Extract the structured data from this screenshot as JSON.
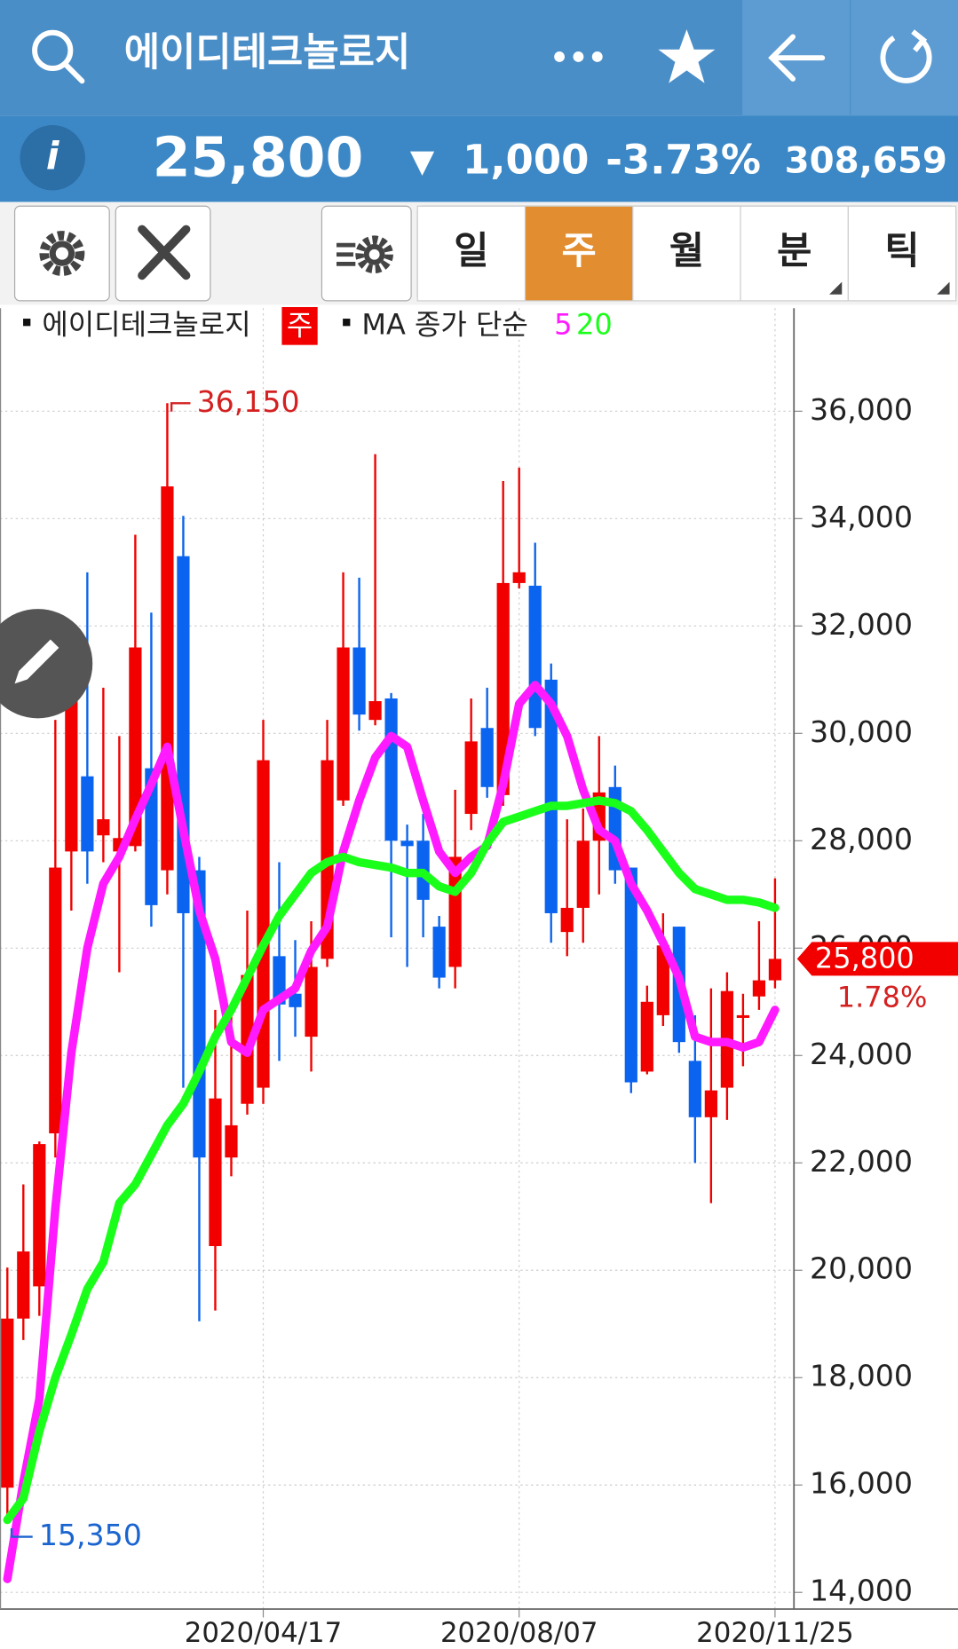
{
  "header": {
    "title": "에이디테크놀로지"
  },
  "quote": {
    "price": "25,800",
    "direction": "▼",
    "change": "1,000",
    "change_pct": "-3.73%",
    "volume": "308,659"
  },
  "toolbar": {
    "tabs": [
      "일",
      "주",
      "월",
      "분",
      "틱"
    ],
    "active_tab": "주"
  },
  "chart_data": {
    "type": "candlestick",
    "title": "에이디테크놀로지",
    "period_badge": "주",
    "ma_label": "MA 종가 단순",
    "categories": [
      null,
      null,
      null,
      null,
      null,
      null,
      null,
      null,
      null,
      null,
      null,
      null,
      null,
      null,
      null,
      null,
      "2020/04/17",
      null,
      null,
      null,
      null,
      null,
      null,
      null,
      null,
      null,
      null,
      null,
      null,
      null,
      null,
      null,
      "2020/08/07",
      null,
      null,
      null,
      null,
      null,
      null,
      null,
      null,
      null,
      null,
      null,
      null,
      null,
      null,
      null,
      "2020/11/25"
    ],
    "open": [
      15950,
      19100,
      19700,
      22550,
      27800,
      29200,
      28100,
      27800,
      27900,
      29350,
      27450,
      33300,
      27450,
      20450,
      22100,
      23100,
      23400,
      25850,
      25150,
      24350,
      25800,
      28750,
      31600,
      30250,
      30650,
      28000,
      28000,
      26400,
      25650,
      28500,
      30100,
      28850,
      32800,
      32750,
      31000,
      26300,
      26750,
      28000,
      29000,
      27500,
      23700,
      24750,
      26400,
      23900,
      22850,
      23400,
      24700,
      25100,
      25400
    ],
    "high": [
      20050,
      21600,
      22400,
      30250,
      31800,
      33000,
      30850,
      29950,
      33700,
      32250,
      36150,
      34050,
      27700,
      24850,
      24850,
      26700,
      30250,
      27600,
      26150,
      26500,
      30250,
      33000,
      32900,
      35200,
      30750,
      28300,
      28500,
      26600,
      28950,
      30650,
      30850,
      34700,
      34950,
      33550,
      31300,
      28400,
      28600,
      29950,
      29400,
      27500,
      25300,
      26650,
      26400,
      24750,
      25250,
      25550,
      25150,
      26500,
      27300
    ],
    "low": [
      15350,
      18700,
      19150,
      22100,
      26700,
      27200,
      27600,
      25550,
      27800,
      26400,
      27000,
      23400,
      19050,
      19250,
      21750,
      22900,
      23100,
      23900,
      24350,
      23700,
      25650,
      28650,
      30050,
      30150,
      26200,
      25650,
      26200,
      25250,
      25250,
      28200,
      28800,
      28650,
      32700,
      29950,
      26100,
      25850,
      26100,
      27000,
      27200,
      23300,
      23650,
      24550,
      24050,
      22000,
      21250,
      22800,
      23800,
      24850,
      25250
    ],
    "close": [
      19100,
      20350,
      22350,
      27500,
      31200,
      27800,
      28400,
      28050,
      31600,
      26800,
      34600,
      26650,
      22100,
      23200,
      22700,
      25500,
      29500,
      24950,
      24900,
      25650,
      29500,
      31600,
      30350,
      30600,
      28000,
      27900,
      26900,
      25450,
      27700,
      29850,
      29000,
      32800,
      33000,
      30100,
      26650,
      26750,
      28000,
      28900,
      27450,
      23500,
      25000,
      26050,
      24250,
      22850,
      23350,
      25200,
      24750,
      25400,
      25800
    ],
    "up_color": "#f20000",
    "down_color": "#0a64f0",
    "series": [
      {
        "name": "5",
        "color": "#ff1aff",
        "values": [
          14250,
          16050,
          17600,
          21150,
          24050,
          26000,
          27200,
          27700,
          28400,
          29050,
          29750,
          28200,
          26700,
          25800,
          24250,
          24050,
          24850,
          25050,
          25250,
          25950,
          26400,
          27800,
          28750,
          29550,
          29950,
          29750,
          28750,
          27800,
          27400,
          27700,
          27900,
          29050,
          30550,
          30900,
          30550,
          29950,
          28950,
          28200,
          28000,
          27200,
          26700,
          26100,
          25450,
          24350,
          24250,
          24250,
          24150,
          24250,
          24850
        ]
      },
      {
        "name": "20",
        "color": "#1aff1a",
        "values": [
          15350,
          15750,
          17000,
          18000,
          18800,
          19650,
          20150,
          21250,
          21600,
          22150,
          22700,
          23100,
          23700,
          24350,
          24850,
          25450,
          26050,
          26600,
          27000,
          27400,
          27600,
          27700,
          27600,
          27550,
          27500,
          27400,
          27400,
          27150,
          27050,
          27400,
          27950,
          28350,
          28450,
          28550,
          28650,
          28650,
          28700,
          28750,
          28700,
          28550,
          28200,
          27800,
          27400,
          27100,
          27000,
          26900,
          26900,
          26850,
          26750
        ]
      }
    ],
    "ylim": [
      13690,
      37920
    ],
    "yticks": [
      {
        "value": 14000,
        "label": "14,000"
      },
      {
        "value": 16000,
        "label": "16,000"
      },
      {
        "value": 18000,
        "label": "18,000"
      },
      {
        "value": 20000,
        "label": "20,000"
      },
      {
        "value": 22000,
        "label": "22,000"
      },
      {
        "value": 24000,
        "label": "24,000"
      },
      {
        "value": 26000,
        "label": "26,000"
      },
      {
        "value": 28000,
        "label": "28,000"
      },
      {
        "value": 30000,
        "label": "30,000"
      },
      {
        "value": 32000,
        "label": "32,000"
      },
      {
        "value": 34000,
        "label": "34,000"
      },
      {
        "value": 36000,
        "label": "36,000"
      }
    ],
    "grid": true,
    "annotations": {
      "max": {
        "value": 36150,
        "label": "36,150"
      },
      "min": {
        "value": 15350,
        "label": "15,350"
      },
      "last": {
        "value": 25800,
        "label": "25,800"
      },
      "change": "1.78%"
    }
  }
}
